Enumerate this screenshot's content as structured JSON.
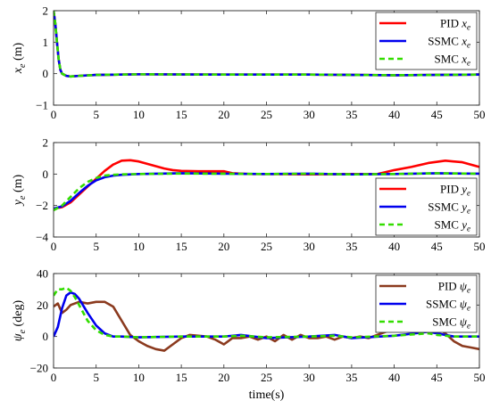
{
  "chart_data": [
    {
      "type": "line",
      "ylabel_main": "x",
      "ylabel_sub": "e",
      "ylabel_unit": " (m)",
      "xlim": [
        0,
        50
      ],
      "ylim": [
        -1,
        2
      ],
      "xticks": [
        "0",
        "5",
        "10",
        "15",
        "20",
        "25",
        "30",
        "35",
        "40",
        "45",
        "50"
      ],
      "yticks": [
        "-1",
        "0",
        "1",
        "2"
      ],
      "legend_position": "top-right",
      "grid": false,
      "series": [
        {
          "name_main": "PID ",
          "name_var": "x",
          "name_sub": "e",
          "color": "#ff0000",
          "dash": "",
          "x": [
            0,
            0.2,
            0.4,
            0.6,
            0.8,
            1.0,
            1.5,
            2,
            3,
            5,
            10,
            20,
            30,
            40,
            45,
            50
          ],
          "y": [
            2,
            1.6,
            1.0,
            0.45,
            0.12,
            0.0,
            -0.07,
            -0.09,
            -0.07,
            -0.04,
            -0.02,
            -0.03,
            -0.03,
            -0.05,
            -0.04,
            -0.03
          ]
        },
        {
          "name_main": "SSMC ",
          "name_var": "x",
          "name_sub": "e",
          "color": "#0000ee",
          "dash": "",
          "x": [
            0,
            0.2,
            0.4,
            0.6,
            0.8,
            1.0,
            1.5,
            2,
            3,
            5,
            10,
            20,
            30,
            40,
            45,
            50
          ],
          "y": [
            2,
            1.6,
            1.0,
            0.45,
            0.12,
            0.0,
            -0.07,
            -0.09,
            -0.07,
            -0.04,
            -0.02,
            -0.03,
            -0.03,
            -0.05,
            -0.04,
            -0.03
          ]
        },
        {
          "name_main": "SMC ",
          "name_var": "x",
          "name_sub": "e",
          "color": "#33dd00",
          "dash": "6,4",
          "x": [
            0,
            0.2,
            0.4,
            0.6,
            0.8,
            1.0,
            1.5,
            2,
            3,
            5,
            10,
            20,
            30,
            40,
            45,
            50
          ],
          "y": [
            2,
            1.6,
            1.0,
            0.45,
            0.12,
            0.0,
            -0.07,
            -0.09,
            -0.07,
            -0.04,
            -0.02,
            -0.03,
            -0.03,
            -0.05,
            -0.04,
            -0.03
          ]
        }
      ]
    },
    {
      "type": "line",
      "ylabel_main": "y",
      "ylabel_sub": "e",
      "ylabel_unit": " (m)",
      "xlim": [
        0,
        50
      ],
      "ylim": [
        -4,
        2
      ],
      "xticks": [
        "0",
        "5",
        "10",
        "15",
        "20",
        "25",
        "30",
        "35",
        "40",
        "45",
        "50"
      ],
      "yticks": [
        "-4",
        "-2",
        "0",
        "2"
      ],
      "legend_position": "bottom-right",
      "grid": false,
      "series": [
        {
          "name_main": "PID ",
          "name_var": "y",
          "name_sub": "e",
          "color": "#ff0000",
          "dash": "",
          "x": [
            0,
            1,
            2,
            3,
            4,
            5,
            6,
            7,
            8,
            9,
            10,
            11,
            12,
            13,
            14,
            15,
            17,
            20,
            21,
            23,
            25,
            30,
            35,
            38,
            40,
            42,
            44,
            46,
            48,
            50
          ],
          "y": [
            -2.2,
            -2.1,
            -1.8,
            -1.3,
            -0.8,
            -0.3,
            0.2,
            0.6,
            0.85,
            0.88,
            0.8,
            0.65,
            0.5,
            0.35,
            0.25,
            0.2,
            0.18,
            0.18,
            0.05,
            0.0,
            0.0,
            -0.02,
            0.0,
            0.0,
            0.25,
            0.45,
            0.7,
            0.85,
            0.75,
            0.45
          ]
        },
        {
          "name_main": "SSMC ",
          "name_var": "y",
          "name_sub": "e",
          "color": "#0000ee",
          "dash": "",
          "x": [
            0,
            1,
            2,
            3,
            4,
            5,
            6,
            7,
            8,
            10,
            15,
            20,
            25,
            30,
            35,
            40,
            45,
            50
          ],
          "y": [
            -2.2,
            -2.05,
            -1.7,
            -1.2,
            -0.75,
            -0.4,
            -0.2,
            -0.1,
            -0.05,
            0.0,
            0.05,
            0.02,
            0.0,
            0.02,
            -0.02,
            0.0,
            0.05,
            0.02
          ]
        },
        {
          "name_main": "SMC ",
          "name_var": "y",
          "name_sub": "e",
          "color": "#33dd00",
          "dash": "6,4",
          "x": [
            0,
            1,
            2,
            3,
            4,
            5,
            6,
            7,
            8,
            10,
            15,
            20,
            25,
            30,
            35,
            40,
            45,
            50
          ],
          "y": [
            -2.3,
            -2.0,
            -1.45,
            -0.9,
            -0.5,
            -0.25,
            -0.1,
            -0.05,
            -0.02,
            0.0,
            0.03,
            0.02,
            0.0,
            0.02,
            -0.02,
            0.0,
            0.05,
            0.02
          ]
        }
      ]
    },
    {
      "type": "line",
      "ylabel_main": "ψ",
      "ylabel_sub": "e",
      "ylabel_unit": " (deg)",
      "xlim": [
        0,
        50
      ],
      "ylim": [
        -20,
        40
      ],
      "xticks": [
        "0",
        "5",
        "10",
        "15",
        "20",
        "25",
        "30",
        "35",
        "40",
        "45",
        "50"
      ],
      "yticks": [
        "-20",
        "0",
        "20",
        "40"
      ],
      "xlabel": "time(s)",
      "legend_position": "top-right",
      "grid": false,
      "series": [
        {
          "name_main": "PID ",
          "name_var": "ψ",
          "name_sub": "e",
          "color": "#8b3a1e",
          "dash": "",
          "x": [
            0,
            0.5,
            1,
            1.5,
            2,
            3,
            4,
            5,
            6,
            7,
            8,
            9,
            10,
            11,
            12,
            13,
            14,
            15,
            16,
            18,
            19,
            20,
            21,
            22,
            23,
            24,
            25,
            26,
            27,
            28,
            29,
            30,
            31,
            32,
            33,
            34,
            35,
            36,
            37,
            38,
            39,
            40,
            41,
            42,
            43,
            44,
            45,
            46,
            47,
            48,
            49,
            50
          ],
          "y": [
            19,
            21,
            15,
            17,
            20,
            22,
            21,
            22,
            22,
            19,
            10,
            1,
            -3,
            -6,
            -8,
            -9,
            -5,
            -1,
            1,
            0,
            -2,
            -5,
            -1,
            -1,
            0,
            -2,
            0,
            -3,
            1,
            -2,
            1,
            -1,
            -1,
            0,
            -2,
            0,
            -1,
            0,
            -1,
            1,
            3,
            5,
            6,
            5,
            6,
            7,
            6,
            2,
            -3,
            -6,
            -7,
            -8
          ]
        },
        {
          "name_main": "SSMC ",
          "name_var": "ψ",
          "name_sub": "e",
          "color": "#0000ee",
          "dash": "",
          "x": [
            0,
            0.5,
            1,
            1.5,
            2,
            2.5,
            3,
            4,
            5,
            6,
            7,
            8,
            10,
            15,
            20,
            22,
            25,
            30,
            33,
            35,
            40,
            44,
            45,
            47,
            50
          ],
          "y": [
            0,
            6,
            18,
            26,
            28,
            27,
            24,
            15,
            7,
            2,
            0,
            0,
            -0.5,
            0,
            0,
            1,
            -1,
            0,
            1,
            -1,
            0.5,
            3,
            2,
            0,
            0
          ]
        },
        {
          "name_main": "SMC ",
          "name_var": "ψ",
          "name_sub": "e",
          "color": "#33dd00",
          "dash": "6,4",
          "x": [
            0,
            0.5,
            1,
            1.5,
            2,
            2.5,
            3,
            4,
            5,
            6,
            7,
            8,
            10,
            15,
            20,
            22,
            25,
            30,
            33,
            35,
            40,
            44,
            45,
            47,
            50
          ],
          "y": [
            26,
            30,
            30,
            31,
            29,
            25,
            20,
            10,
            4,
            1,
            0,
            0,
            -0.5,
            0,
            0,
            0.5,
            -0.5,
            0,
            0.5,
            -0.5,
            0.5,
            2,
            1,
            0,
            0
          ]
        }
      ]
    }
  ]
}
